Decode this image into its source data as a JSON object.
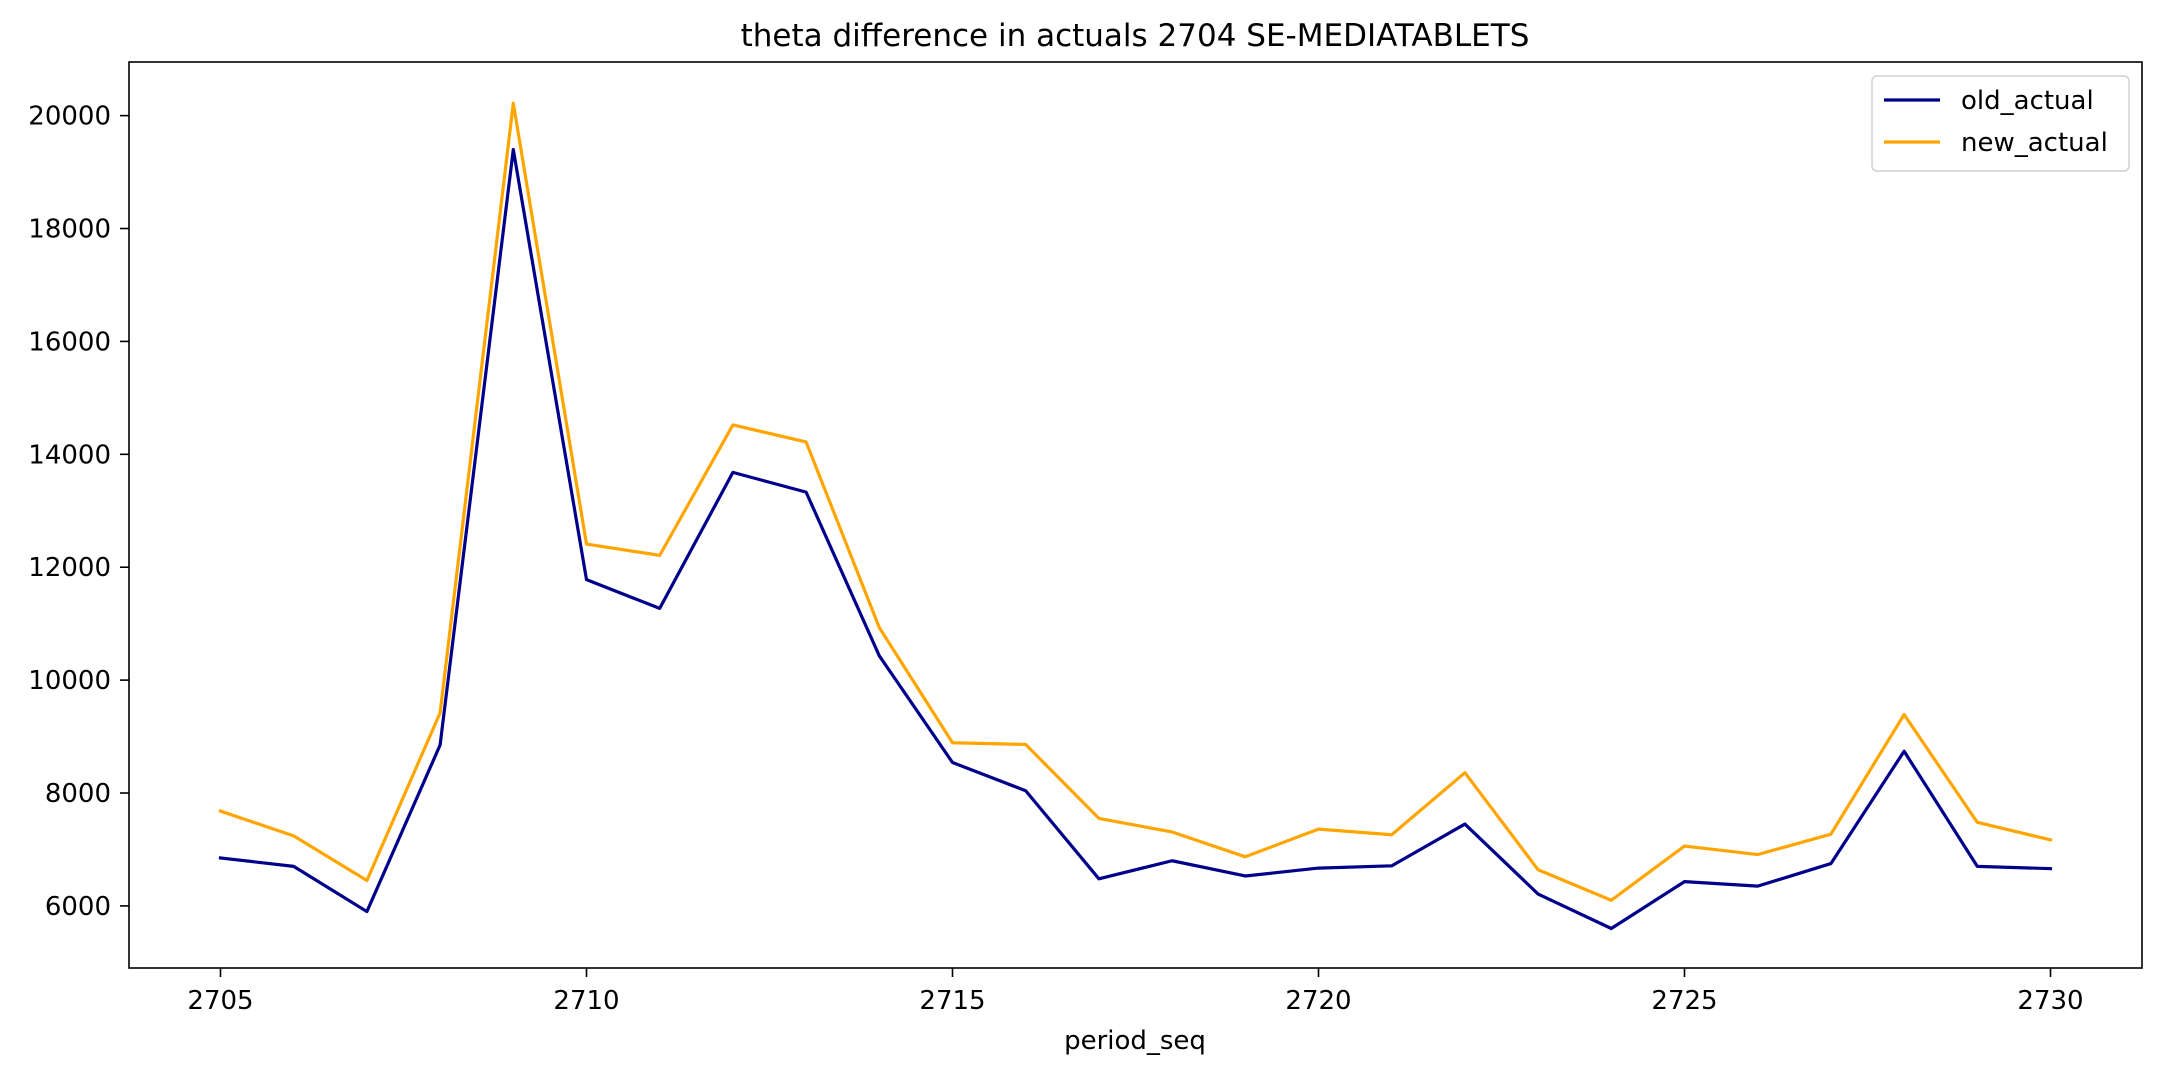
{
  "chart_data": {
    "type": "line",
    "title": "theta difference in actuals 2704 SE-MEDIATABLETS",
    "xlabel": "period_seq",
    "ylabel": "",
    "x": [
      2705,
      2706,
      2707,
      2708,
      2709,
      2710,
      2711,
      2712,
      2713,
      2714,
      2715,
      2716,
      2717,
      2718,
      2719,
      2720,
      2721,
      2722,
      2723,
      2724,
      2725,
      2726,
      2727,
      2728,
      2729,
      2730
    ],
    "xlim": [
      2703.75,
      2731.25
    ],
    "ylim": [
      4900,
      20950
    ],
    "xticks": [
      "2705",
      "2710",
      "2715",
      "2720",
      "2725",
      "2730"
    ],
    "yticks": [
      "6000",
      "8000",
      "10000",
      "12000",
      "14000",
      "16000",
      "18000",
      "20000"
    ],
    "grid": false,
    "legend_position": "upper right",
    "series": [
      {
        "name": "old_actual",
        "color": "#00008b",
        "values": [
          6850,
          6700,
          5900,
          8850,
          19400,
          11780,
          11270,
          13680,
          13330,
          10430,
          8540,
          8040,
          6480,
          6800,
          6530,
          6670,
          6710,
          7450,
          6210,
          5600,
          6430,
          6350,
          6750,
          8740,
          6700,
          6660
        ]
      },
      {
        "name": "new_actual",
        "color": "#ffa500",
        "values": [
          7680,
          7240,
          6450,
          9420,
          20220,
          12410,
          12210,
          14520,
          14220,
          10930,
          8890,
          8860,
          7550,
          7310,
          6870,
          7360,
          7260,
          8360,
          6640,
          6100,
          7060,
          6910,
          7270,
          9390,
          7480,
          7170
        ]
      }
    ]
  }
}
